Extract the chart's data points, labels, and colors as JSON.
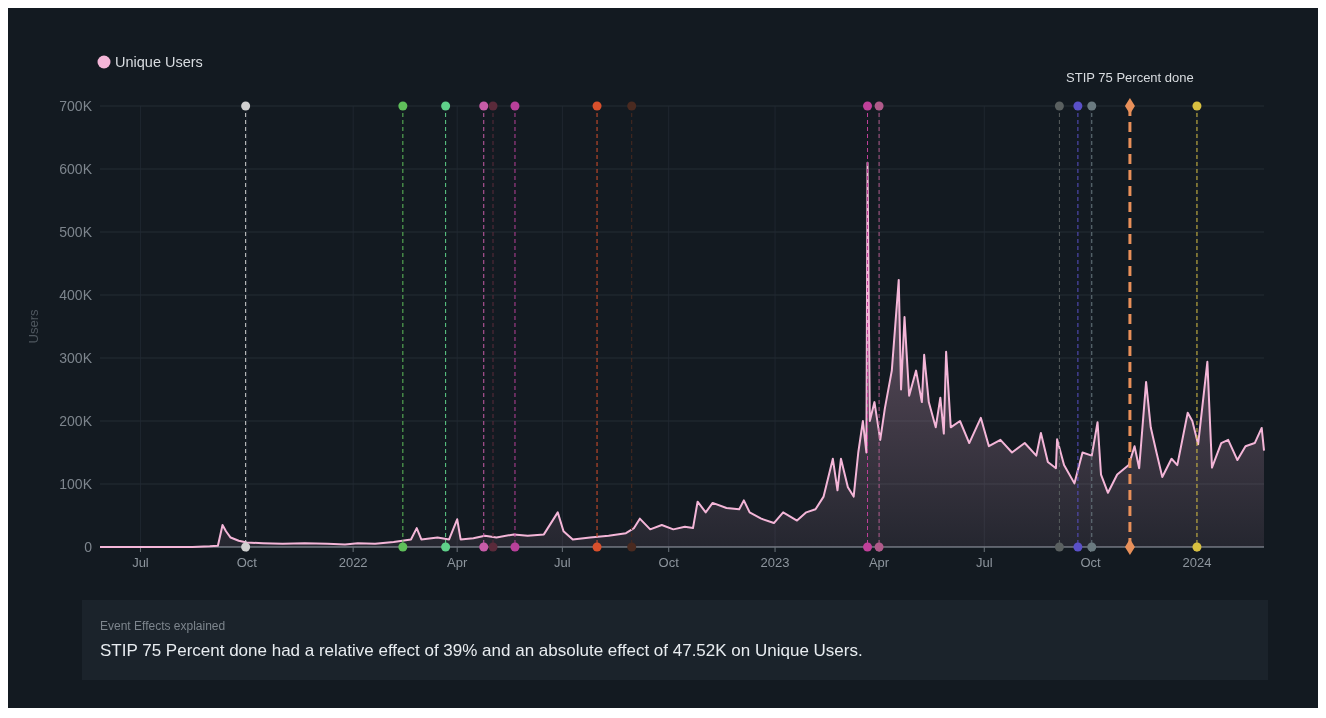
{
  "chart_data": {
    "type": "area",
    "ylabel": "Users",
    "x": [
      "2021-05-27",
      "2021-07-01",
      "2021-08-15",
      "2021-08-30",
      "2021-09-06",
      "2021-09-10",
      "2021-09-13",
      "2021-09-17",
      "2021-09-24",
      "2021-10-01",
      "2021-10-15",
      "2021-11-01",
      "2021-11-20",
      "2021-12-10",
      "2021-12-25",
      "2022-01-05",
      "2022-01-20",
      "2022-02-05",
      "2022-02-20",
      "2022-02-25",
      "2022-03-01",
      "2022-03-15",
      "2022-03-25",
      "2022-04-01",
      "2022-04-04",
      "2022-04-15",
      "2022-04-25",
      "2022-05-05",
      "2022-05-20",
      "2022-06-01",
      "2022-06-15",
      "2022-06-27",
      "2022-07-02",
      "2022-07-10",
      "2022-07-25",
      "2022-08-10",
      "2022-08-25",
      "2022-09-01",
      "2022-09-06",
      "2022-09-15",
      "2022-09-25",
      "2022-10-05",
      "2022-10-15",
      "2022-10-22",
      "2022-10-26",
      "2022-11-02",
      "2022-11-08",
      "2022-11-20",
      "2022-12-01",
      "2022-12-05",
      "2022-12-10",
      "2022-12-20",
      "2022-12-31",
      "2023-01-08",
      "2023-01-20",
      "2023-01-28",
      "2023-02-05",
      "2023-02-12",
      "2023-02-20",
      "2023-02-24",
      "2023-02-27",
      "2023-03-05",
      "2023-03-10",
      "2023-03-14",
      "2023-03-18",
      "2023-03-21",
      "2023-03-22",
      "2023-03-24",
      "2023-03-28",
      "2023-04-02",
      "2023-04-06",
      "2023-04-12",
      "2023-04-18",
      "2023-04-20",
      "2023-04-23",
      "2023-04-27",
      "2023-05-03",
      "2023-05-08",
      "2023-05-10",
      "2023-05-14",
      "2023-05-20",
      "2023-05-24",
      "2023-05-27",
      "2023-05-29",
      "2023-06-02",
      "2023-06-10",
      "2023-06-18",
      "2023-06-28",
      "2023-07-05",
      "2023-07-15",
      "2023-07-25",
      "2023-08-05",
      "2023-08-15",
      "2023-08-19",
      "2023-08-25",
      "2023-09-01",
      "2023-09-02",
      "2023-09-08",
      "2023-09-17",
      "2023-09-24",
      "2023-10-02",
      "2023-10-07",
      "2023-10-10",
      "2023-10-16",
      "2023-10-24",
      "2023-11-03",
      "2023-11-08",
      "2023-11-12",
      "2023-11-18",
      "2023-11-22",
      "2023-11-27",
      "2023-12-02",
      "2023-12-10",
      "2023-12-15",
      "2023-12-24",
      "2023-12-28",
      "2024-01-02",
      "2024-01-10",
      "2024-01-14",
      "2024-01-22",
      "2024-01-28",
      "2024-02-05",
      "2024-02-12",
      "2024-02-20",
      "2024-02-26",
      "2024-02-28"
    ],
    "series": [
      {
        "name": "Unique Users",
        "color": "#f4b6d8",
        "values": [
          0,
          0,
          0,
          1000,
          2000,
          35000,
          25000,
          15000,
          10000,
          7000,
          6000,
          5000,
          6000,
          5000,
          4000,
          6000,
          5000,
          8000,
          12000,
          30000,
          12000,
          15000,
          12000,
          44000,
          12000,
          14000,
          18000,
          15000,
          20000,
          18000,
          20000,
          55000,
          25000,
          12000,
          15000,
          18000,
          22000,
          30000,
          45000,
          28000,
          35000,
          28000,
          32000,
          30000,
          72000,
          55000,
          70000,
          62000,
          60000,
          74000,
          55000,
          45000,
          38000,
          55000,
          42000,
          55000,
          60000,
          80000,
          140000,
          90000,
          140000,
          95000,
          80000,
          150000,
          200000,
          150000,
          610000,
          200000,
          230000,
          170000,
          220000,
          280000,
          424000,
          250000,
          365000,
          240000,
          280000,
          230000,
          305000,
          230000,
          190000,
          237000,
          180000,
          310000,
          190000,
          200000,
          165000,
          205000,
          160000,
          170000,
          150000,
          165000,
          145000,
          181000,
          135000,
          125000,
          171000,
          130000,
          101000,
          150000,
          145000,
          198000,
          115000,
          86000,
          115000,
          130000,
          160000,
          125000,
          262000,
          190000,
          150000,
          111000,
          140000,
          130000,
          213000,
          200000,
          163000,
          294000,
          126000,
          165000,
          170000,
          138000,
          160000,
          165000,
          189000,
          153000
        ]
      }
    ],
    "xlim": [
      "2021-05-27",
      "2024-02-28"
    ],
    "xticks": [
      {
        "value": "2021-07-01",
        "label": "Jul"
      },
      {
        "value": "2021-10-01",
        "label": "Oct"
      },
      "2022",
      {
        "value": "2022-04-01",
        "label": "Apr"
      },
      {
        "value": "2022-07-01",
        "label": "Jul"
      },
      {
        "value": "2022-10-01",
        "label": "Oct"
      },
      "2023",
      {
        "value": "2023-04-01",
        "label": "Apr"
      },
      {
        "value": "2023-07-01",
        "label": "Jul"
      },
      {
        "value": "2023-10-01",
        "label": "Oct"
      },
      "2024"
    ],
    "ylim": [
      0,
      700000
    ],
    "yticks": [
      {
        "value": 0,
        "label": "0"
      },
      {
        "value": 100000,
        "label": "100K"
      },
      {
        "value": 200000,
        "label": "200K"
      },
      {
        "value": 300000,
        "label": "300K"
      },
      {
        "value": 400000,
        "label": "400K"
      },
      {
        "value": 500000,
        "label": "500K"
      },
      {
        "value": 600000,
        "label": "600K"
      },
      {
        "value": 700000,
        "label": "700K"
      }
    ],
    "grid": true,
    "legend": "top left",
    "line_style": "solid",
    "ref_lines": [
      {
        "axis": "x",
        "value": "2021-09-30",
        "color": "#d0d0d0",
        "line_style": "dashed"
      },
      {
        "axis": "x",
        "value": "2022-02-13",
        "color": "#5fbf5a",
        "line_style": "dashed"
      },
      {
        "axis": "x",
        "value": "2022-03-22",
        "color": "#5fd08a",
        "line_style": "dashed"
      },
      {
        "axis": "x",
        "value": "2022-04-24",
        "color": "#c85ca8",
        "line_style": "dashed"
      },
      {
        "axis": "x",
        "value": "2022-05-02",
        "color": "#5a2a3a",
        "line_style": "dashed"
      },
      {
        "axis": "x",
        "value": "2022-05-21",
        "color": "#b8409a",
        "line_style": "dashed"
      },
      {
        "axis": "x",
        "value": "2022-07-31",
        "color": "#d8502c",
        "line_style": "dashed"
      },
      {
        "axis": "x",
        "value": "2022-08-30",
        "color": "#4a2a20",
        "line_style": "dashed"
      },
      {
        "axis": "x",
        "value": "2023-03-22",
        "color": "#c0409a",
        "line_style": "dashed"
      },
      {
        "axis": "x",
        "value": "2023-04-01",
        "color": "#b05a8a",
        "line_style": "dashed"
      },
      {
        "axis": "x",
        "value": "2023-09-04",
        "color": "#5a6060",
        "line_style": "dashed"
      },
      {
        "axis": "x",
        "value": "2023-09-20",
        "color": "#5a50c8",
        "line_style": "dashed"
      },
      {
        "axis": "x",
        "value": "2023-10-02",
        "color": "#6a7a80",
        "line_style": "dashed"
      },
      {
        "axis": "x",
        "value": "2023-11-04",
        "label": "STIP 75 Percent done",
        "color": "#e8905a",
        "line_style": "dashed"
      },
      {
        "axis": "x",
        "value": "2024-01-01",
        "color": "#d8c040",
        "line_style": "dashed"
      }
    ],
    "annotations": [
      "Event Effects explained",
      "STIP 75 Percent done had a relative effect of 39% and an absolute effect of 47.52K on Unique Users."
    ]
  }
}
